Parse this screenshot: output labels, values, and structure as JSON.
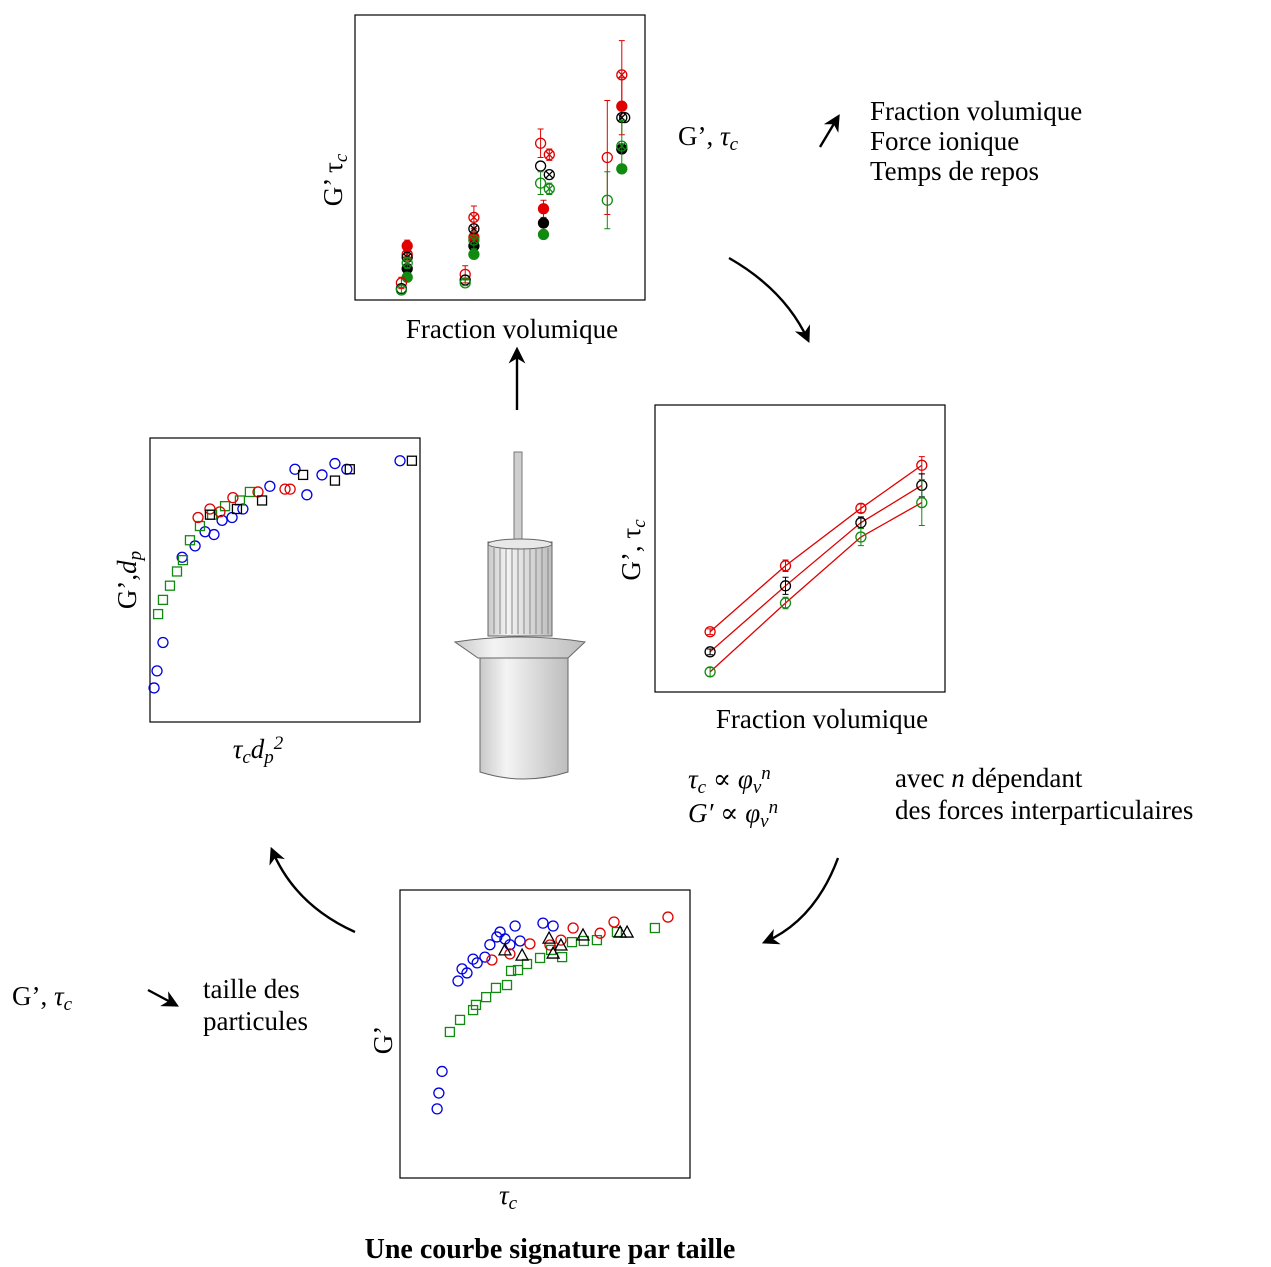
{
  "top_plot": {
    "type": "scatter",
    "xlabel": [
      "Fraction volumique"
    ],
    "ylabel": [
      "G’ τ",
      {
        "text": "c",
        "pos": "sub"
      }
    ],
    "xlim": [
      0,
      100
    ],
    "ylim": [
      0,
      100
    ],
    "series": [
      {
        "color": "#e00000",
        "marker": "dot",
        "x": [
          18,
          41,
          65,
          92
        ],
        "values": [
          19,
          22,
          32,
          68
        ],
        "errors": [
          2,
          3,
          3,
          10
        ]
      },
      {
        "color": "#000000",
        "marker": "dot",
        "x": [
          18,
          41,
          65,
          92
        ],
        "values": [
          11,
          19,
          27,
          53
        ]
      },
      {
        "color": "#108a10",
        "marker": "dot",
        "x": [
          18,
          41,
          65,
          92
        ],
        "values": [
          8,
          16,
          23,
          46
        ]
      },
      {
        "color": "#e00000",
        "marker": "circle",
        "x": [
          16,
          38,
          64,
          87
        ],
        "values": [
          6,
          9,
          55,
          50
        ],
        "errors": [
          2,
          3,
          5,
          20
        ]
      },
      {
        "color": "#000000",
        "marker": "circle",
        "x": [
          16,
          38,
          64,
          93
        ],
        "values": [
          4,
          7,
          47,
          64
        ]
      },
      {
        "color": "#108a10",
        "marker": "circle",
        "x": [
          16,
          38,
          64,
          87
        ],
        "values": [
          3.5,
          6,
          41,
          35
        ],
        "errors": [
          1,
          1,
          4,
          10
        ]
      },
      {
        "color": "#e00000",
        "marker": "crossed",
        "x": [
          18,
          41,
          67,
          92
        ],
        "values": [
          16,
          29,
          51,
          79
        ],
        "errors": [
          2,
          4,
          2,
          12
        ]
      },
      {
        "color": "#000000",
        "marker": "crossed",
        "x": [
          18,
          41,
          67,
          92
        ],
        "values": [
          15,
          25,
          44,
          64
        ]
      },
      {
        "color": "#108a10",
        "marker": "crossed",
        "x": [
          18,
          41,
          67,
          92
        ],
        "values": [
          13,
          21,
          39,
          54
        ],
        "errors": [
          2,
          3,
          2,
          9
        ]
      }
    ]
  },
  "top_note": {
    "label": [
      "G’, ",
      {
        "text": "τ",
        "pos": "it"
      },
      {
        "text": "c",
        "pos": "sub"
      }
    ],
    "factors": [
      "Fraction volumique",
      "Force ionique",
      "Temps de repos"
    ]
  },
  "right_plot": {
    "type": "scatter",
    "fit": true,
    "fit_color": "#e00000",
    "xlabel": [
      "Fraction volumique"
    ],
    "ylabel": [
      "G’, τ",
      {
        "text": "c",
        "pos": "sub"
      }
    ],
    "xlim": [
      0,
      100
    ],
    "ylim": [
      0,
      100
    ],
    "series": [
      {
        "color": "#e00000",
        "marker": "circle",
        "x": [
          19,
          45,
          71,
          92
        ],
        "values": [
          21,
          44,
          64,
          79
        ],
        "errors": [
          1,
          2,
          1.5,
          3
        ]
      },
      {
        "color": "#000000",
        "marker": "circle",
        "x": [
          19,
          45,
          71,
          92
        ],
        "values": [
          14,
          37,
          59,
          72
        ],
        "errors": [
          1,
          3,
          2,
          4
        ]
      },
      {
        "color": "#108a10",
        "marker": "circle",
        "x": [
          19,
          45,
          71,
          92
        ],
        "values": [
          7,
          31,
          54,
          66
        ],
        "errors": [
          1.5,
          2,
          3,
          8
        ]
      }
    ]
  },
  "relation": {
    "equations": [
      [
        {
          "text": "τ",
          "pos": "it"
        },
        {
          "text": "c",
          "pos": "sub"
        },
        " ∝ ",
        {
          "text": "φ",
          "pos": "it"
        },
        {
          "text": "v",
          "pos": "sub"
        },
        {
          "text": "n",
          "pos": "sup"
        }
      ],
      [
        {
          "text": "G′",
          "pos": "it"
        },
        " ∝ ",
        {
          "text": "φ",
          "pos": "it"
        },
        {
          "text": "v",
          "pos": "sub"
        },
        {
          "text": "n",
          "pos": "sup"
        }
      ]
    ],
    "note": [
      [
        "avec ",
        {
          "text": "n",
          "pos": "it"
        },
        " dépendant"
      ],
      [
        "des forces interparticulaires"
      ]
    ]
  },
  "bottom_plot": {
    "type": "scatter",
    "xlabel": [
      {
        "text": "τ",
        "pos": "it"
      },
      {
        "text": "c",
        "pos": "sub"
      }
    ],
    "ylabel": [
      "G’"
    ],
    "xlim": [
      0,
      100
    ],
    "ylim": [
      0,
      100
    ],
    "series": [
      {
        "color": "#0000e0",
        "marker": "circle",
        "x": [
          12.8,
          13.4,
          14.5,
          20,
          21.4,
          23.1,
          25.2,
          26.6,
          29.3,
          31,
          34.5,
          36.2,
          39.7,
          41.4,
          49.3,
          52.8,
          33.4,
          37.9
        ],
        "values": [
          24,
          29.5,
          37,
          68.4,
          72.6,
          71.2,
          76,
          74.7,
          76.7,
          81,
          85.4,
          83,
          87.5,
          82.3,
          88.5,
          87.5,
          83.7,
          81
        ]
      },
      {
        "color": "#108a10",
        "marker": "square",
        "x": [
          17.2,
          20.7,
          25.2,
          26.2,
          29.7,
          33.1,
          36.9,
          38.3,
          40.7,
          43.8,
          48.3,
          52.1,
          55.9,
          59.3,
          63.4,
          67.9,
          74.8,
          87.9
        ],
        "values": [
          50.7,
          54.9,
          58.3,
          60.1,
          62.8,
          66,
          67,
          71.9,
          72.2,
          74.3,
          76.4,
          79.2,
          76.7,
          81.9,
          82.3,
          82.6,
          85.4,
          86.8
        ]
      },
      {
        "color": "#e00000",
        "marker": "circle",
        "x": [
          31.7,
          37.9,
          44.8,
          51.7,
          55.5,
          59.7,
          69,
          73.8,
          92.4
        ],
        "values": [
          75.7,
          77.8,
          81.3,
          80.9,
          82.6,
          86.8,
          85,
          88.9,
          90.6
        ]
      },
      {
        "color": "#000000",
        "marker": "triangle",
        "x": [
          36.2,
          42.1,
          51.4,
          52.8,
          63.1,
          75.9,
          78.3,
          55.5
        ],
        "values": [
          79.2,
          77.4,
          83.3,
          78.1,
          84.4,
          85.4,
          85.4,
          80.9
        ]
      }
    ]
  },
  "left_note": {
    "label": [
      "G’, ",
      {
        "text": "τ",
        "pos": "it"
      },
      {
        "text": "c",
        "pos": "sub"
      }
    ],
    "result": [
      "taille des",
      "particules"
    ]
  },
  "left_plot": {
    "type": "scatter",
    "xlabel": [
      {
        "text": "τ",
        "pos": "it"
      },
      {
        "text": "c",
        "pos": "sub"
      },
      {
        "text": "d",
        "pos": "it"
      },
      {
        "text": "p",
        "pos": "sub"
      },
      {
        "text": "2",
        "pos": "sup"
      }
    ],
    "ylabel": [
      "G’,",
      {
        "text": "d",
        "pos": "it"
      },
      {
        "text": "p",
        "pos": "sub"
      }
    ],
    "xlim": [
      0,
      100
    ],
    "ylim": [
      0,
      100
    ],
    "series": [
      {
        "color": "#0000e0",
        "marker": "circle",
        "x": [
          1.5,
          2.6,
          4.8,
          11.9,
          16.7,
          20.4,
          23.7,
          26.7,
          30.4,
          34.4,
          44.4,
          53.7,
          58.1,
          63.7,
          68.5,
          72.9,
          92.6
        ],
        "values": [
          12,
          18,
          28,
          58,
          62,
          67,
          66,
          71,
          72,
          75,
          83,
          89,
          80,
          87,
          91,
          89,
          92
        ]
      },
      {
        "color": "#108a10",
        "marker": "square",
        "x": [
          3,
          4.8,
          7.4,
          10,
          12.2,
          14.8,
          18.5,
          23,
          27.8,
          33.3,
          37
        ],
        "values": [
          38,
          43,
          48,
          53,
          57,
          64,
          69,
          73,
          76,
          78,
          81
        ]
      },
      {
        "color": "#e00000",
        "marker": "circle",
        "x": [
          17.8,
          22.2,
          25.9,
          30.7,
          40,
          50,
          51.9
        ],
        "values": [
          72,
          75,
          74,
          79,
          81,
          82,
          82
        ]
      },
      {
        "color": "#000000",
        "marker": "square",
        "x": [
          22.2,
          32.2,
          41.5,
          56.7,
          68.5,
          74,
          97
        ],
        "values": [
          73,
          75,
          78,
          87,
          85,
          89,
          92
        ]
      }
    ]
  },
  "caption": "Une courbe signature par taille"
}
